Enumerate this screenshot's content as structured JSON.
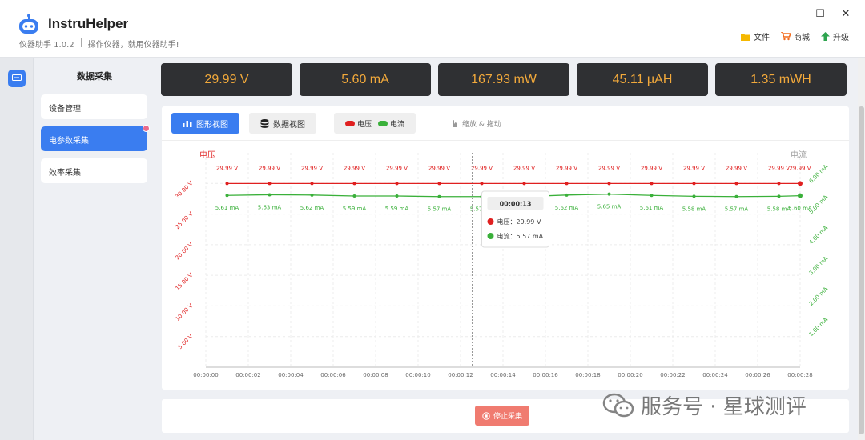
{
  "app": {
    "name": "InstruHelper",
    "version_label": "仪器助手 1.0.2",
    "slogan": "操作仪器，就用仪器助手!"
  },
  "window_controls": {
    "minimize": "—",
    "maximize": "☐",
    "close": "✕"
  },
  "top_menu": [
    {
      "label": "文件",
      "icon": "folder-icon",
      "color": "#f5b800"
    },
    {
      "label": "商城",
      "icon": "cart-icon",
      "color": "#f26b1d"
    },
    {
      "label": "升级",
      "icon": "upgrade-icon",
      "color": "#2ea44f"
    }
  ],
  "sidebar": {
    "title": "数据采集",
    "items": [
      {
        "label": "设备管理",
        "active": false
      },
      {
        "label": "电参数采集",
        "active": true
      },
      {
        "label": "效率采集",
        "active": false
      }
    ]
  },
  "metrics": [
    "29.99 V",
    "5.60 mA",
    "167.93 mW",
    "45.11 μAH",
    "1.35 mWH"
  ],
  "toolbar": {
    "graph_view": "图形视图",
    "data_view": "数据视图",
    "legend_voltage": "电压",
    "legend_current": "电流",
    "hint": "缩放 & 拖动"
  },
  "colors": {
    "accent": "#3a7df0",
    "voltage": "#e02020",
    "current": "#3ab03a",
    "metric_text": "#f2a93b"
  },
  "chart_data": {
    "type": "line",
    "x": [
      "00:00:01",
      "00:00:03",
      "00:00:05",
      "00:00:07",
      "00:00:09",
      "00:00:11",
      "00:00:13",
      "00:00:15",
      "00:00:17",
      "00:00:19",
      "00:00:21",
      "00:00:23",
      "00:00:25",
      "00:00:27",
      "00:00:28"
    ],
    "x_ticks": [
      "00:00:00",
      "00:00:02",
      "00:00:04",
      "00:00:06",
      "00:00:08",
      "00:00:10",
      "00:00:12",
      "00:00:14",
      "00:00:16",
      "00:00:18",
      "00:00:20",
      "00:00:22",
      "00:00:24",
      "00:00:26",
      "00:00:28"
    ],
    "series": [
      {
        "name": "电压",
        "axis": "left",
        "unit": "V",
        "values": [
          29.99,
          29.99,
          29.99,
          29.99,
          29.99,
          29.99,
          29.99,
          29.99,
          29.99,
          29.99,
          29.99,
          29.99,
          29.99,
          29.99,
          29.99
        ],
        "labels": [
          "29.99 V",
          "29.99 V",
          "29.99 V",
          "29.99 V",
          "29.99 V",
          "29.99 V",
          "29.99 V",
          "29.99 V",
          "29.99 V",
          "29.99 V",
          "29.99 V",
          "29.99 V",
          "29.99 V",
          "29.99 V",
          "29.99 V"
        ]
      },
      {
        "name": "电流",
        "axis": "right",
        "unit": "mA",
        "values": [
          5.61,
          5.63,
          5.62,
          5.59,
          5.59,
          5.57,
          5.57,
          5.57,
          5.62,
          5.65,
          5.61,
          5.58,
          5.57,
          5.58,
          5.6
        ],
        "labels": [
          "5.61 mA",
          "5.63 mA",
          "5.62 mA",
          "5.59 mA",
          "5.59 mA",
          "5.57 mA",
          "5.57 mA",
          "5.57 mA",
          "5.62 mA",
          "5.65 mA",
          "5.61 mA",
          "5.58 mA",
          "5.57 mA",
          "5.58 mA",
          "5.60 mA"
        ]
      }
    ],
    "y_left": {
      "label": "电压",
      "ticks": [
        "5.00 V",
        "10.00 V",
        "15.00 V",
        "20.00 V",
        "25.00 V",
        "30.00 V"
      ],
      "ylim": [
        0,
        35
      ]
    },
    "y_right": {
      "label": "电流",
      "ticks": [
        "1.00 mA",
        "2.00 mA",
        "3.00 mA",
        "4.00 mA",
        "5.00 mA",
        "6.00 mA"
      ],
      "ylim": [
        0,
        7
      ]
    },
    "grid": true,
    "tooltip": {
      "time": "00:00:13",
      "voltage": "电压：29.99 V",
      "current": "电流：5.57 mA"
    }
  },
  "actions": {
    "stop": "停止采集"
  },
  "watermark": "服务号 · 星球测评"
}
